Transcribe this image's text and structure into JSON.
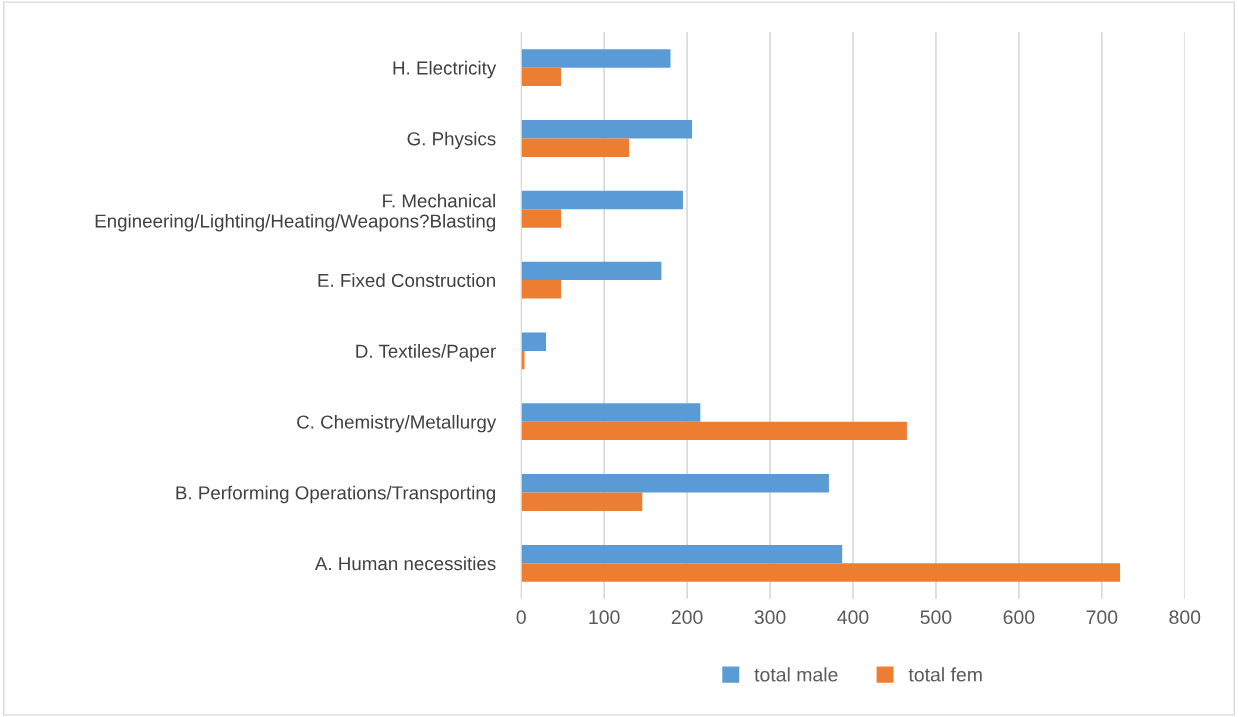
{
  "chart_data": {
    "type": "bar",
    "orientation": "horizontal",
    "categories": [
      "H. Electricity",
      "G. Physics",
      "F. Mechanical Engineering/Lighting/Heating/Weapons?Blasting",
      "E. Fixed Construction",
      "D. Textiles/Paper",
      "C. Chemistry/Metallurgy",
      "B. Performing Operations/Transporting",
      "A. Human necessities"
    ],
    "series": [
      {
        "name": "total male",
        "color": "#5b9bd5",
        "values": [
          180,
          206,
          195,
          169,
          30,
          216,
          371,
          387
        ]
      },
      {
        "name": "total fem",
        "color": "#ed7d31",
        "values": [
          48,
          130,
          48,
          48,
          4,
          465,
          146,
          722
        ]
      }
    ],
    "xlim": [
      0,
      800
    ],
    "xticks": [
      0,
      100,
      200,
      300,
      400,
      500,
      600,
      700,
      800
    ],
    "grid": "x",
    "legend": "bottom"
  }
}
